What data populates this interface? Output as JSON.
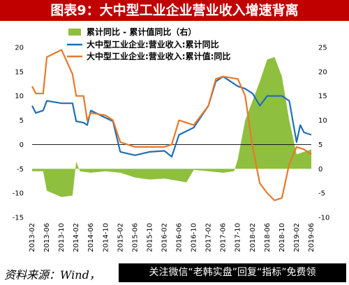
{
  "title": "图表9：大中型工业企业营业收入增速背离",
  "source": "资料来源：Wind，",
  "promo": "关注微信“老韩实盘”回复“指标”免费领",
  "colors": {
    "bg_title": "#c00000",
    "area": "#8fbf3f",
    "blue": "#1f6eb5",
    "orange": "#e8782a"
  },
  "chart_data": {
    "type": "line",
    "x_tick_labels": [
      "2013-02",
      "2013-06",
      "2013-10",
      "2014-02",
      "2014-06",
      "2014-10",
      "2015-02",
      "2015-06",
      "2015-10",
      "2016-02",
      "2016-06",
      "2016-10",
      "2017-02",
      "2017-06",
      "2017-10",
      "2018-02",
      "2018-06",
      "2018-10",
      "2019-02",
      "2019-06"
    ],
    "x_start": "2013-02",
    "x_end": "2019-06",
    "left_axis": {
      "min": -15,
      "max": 20,
      "ticks": [
        -15,
        -10,
        -5,
        0,
        5,
        10,
        15,
        20
      ]
    },
    "right_axis": {
      "min": -10,
      "max": 25,
      "ticks": [
        -10,
        -5,
        0,
        5,
        10,
        15,
        20,
        25
      ]
    },
    "legend": [
      {
        "label": "累计同比 - 累计值同比（右）",
        "type": "area"
      },
      {
        "label": "大中型工业企业:营业收入:累计同比",
        "type": "line"
      },
      {
        "label": "大中型工业企业:营业收入:累计值:同比",
        "type": "line"
      }
    ],
    "series": [
      {
        "name": "累计同比 - 累计值同比（右）",
        "axis": "right",
        "kind": "area",
        "points": [
          [
            "2013-02",
            -0.5
          ],
          [
            "2013-05",
            -0.5
          ],
          [
            "2013-06",
            -4.5
          ],
          [
            "2013-10",
            -5.8
          ],
          [
            "2014-01",
            -5.5
          ],
          [
            "2014-02",
            1.5
          ],
          [
            "2014-03",
            -0.5
          ],
          [
            "2014-06",
            -0.8
          ],
          [
            "2014-10",
            -0.5
          ],
          [
            "2015-02",
            -0.8
          ],
          [
            "2015-06",
            -1.8
          ],
          [
            "2015-10",
            -2.2
          ],
          [
            "2016-02",
            -2.0
          ],
          [
            "2016-06",
            -2.5
          ],
          [
            "2016-08",
            -2.8
          ],
          [
            "2016-10",
            -0.2
          ],
          [
            "2017-02",
            -0.5
          ],
          [
            "2017-06",
            -0.8
          ],
          [
            "2017-09",
            -0.5
          ],
          [
            "2017-10",
            2.0
          ],
          [
            "2017-12",
            10.0
          ],
          [
            "2018-02",
            14.0
          ],
          [
            "2018-04",
            18.0
          ],
          [
            "2018-06",
            22.5
          ],
          [
            "2018-08",
            23.0
          ],
          [
            "2018-10",
            19.0
          ],
          [
            "2018-12",
            10.0
          ],
          [
            "2019-02",
            3.0
          ],
          [
            "2019-04",
            3.5
          ],
          [
            "2019-06",
            4.0
          ]
        ]
      },
      {
        "name": "大中型工业企业:营业收入:累计同比",
        "axis": "left",
        "kind": "line",
        "points": [
          [
            "2013-02",
            8
          ],
          [
            "2013-03",
            6.5
          ],
          [
            "2013-05",
            7
          ],
          [
            "2013-06",
            9
          ],
          [
            "2013-10",
            8.5
          ],
          [
            "2014-01",
            8.5
          ],
          [
            "2014-02",
            4.8
          ],
          [
            "2014-04",
            4.5
          ],
          [
            "2014-05",
            4
          ],
          [
            "2014-06",
            7
          ],
          [
            "2014-10",
            5.5
          ],
          [
            "2014-12",
            4.8
          ],
          [
            "2015-02",
            -1.5
          ],
          [
            "2015-06",
            -2.2
          ],
          [
            "2015-10",
            -1.5
          ],
          [
            "2016-02",
            -1.3
          ],
          [
            "2016-04",
            -2.5
          ],
          [
            "2016-06",
            2
          ],
          [
            "2016-10",
            3.5
          ],
          [
            "2017-02",
            8
          ],
          [
            "2017-04",
            13
          ],
          [
            "2017-06",
            14
          ],
          [
            "2017-10",
            12
          ],
          [
            "2017-12",
            11.5
          ],
          [
            "2018-02",
            10.5
          ],
          [
            "2018-04",
            8
          ],
          [
            "2018-06",
            10
          ],
          [
            "2018-10",
            10
          ],
          [
            "2018-12",
            9
          ],
          [
            "2019-02",
            0.5
          ],
          [
            "2019-03",
            4
          ],
          [
            "2019-04",
            2.5
          ],
          [
            "2019-06",
            2
          ]
        ]
      },
      {
        "name": "大中型工业企业:营业收入:累计值:同比",
        "axis": "left",
        "kind": "line",
        "points": [
          [
            "2013-02",
            12
          ],
          [
            "2013-03",
            10.5
          ],
          [
            "2013-05",
            10.5
          ],
          [
            "2013-06",
            18
          ],
          [
            "2013-10",
            19.5
          ],
          [
            "2014-01",
            14.5
          ],
          [
            "2014-02",
            10
          ],
          [
            "2014-04",
            10
          ],
          [
            "2014-05",
            5
          ],
          [
            "2014-06",
            6.5
          ],
          [
            "2014-10",
            6
          ],
          [
            "2014-12",
            5
          ],
          [
            "2015-02",
            0.5
          ],
          [
            "2015-06",
            -0.5
          ],
          [
            "2015-10",
            -0.5
          ],
          [
            "2016-02",
            -0.5
          ],
          [
            "2016-04",
            0
          ],
          [
            "2016-06",
            5
          ],
          [
            "2016-08",
            4.5
          ],
          [
            "2016-10",
            4
          ],
          [
            "2017-02",
            8
          ],
          [
            "2017-04",
            13.5
          ],
          [
            "2017-06",
            14
          ],
          [
            "2017-10",
            13.5
          ],
          [
            "2017-12",
            10
          ],
          [
            "2018-02",
            -0.5
          ],
          [
            "2018-04",
            -8
          ],
          [
            "2018-06",
            -10
          ],
          [
            "2018-08",
            -11.5
          ],
          [
            "2018-10",
            -11
          ],
          [
            "2018-12",
            -4
          ],
          [
            "2019-02",
            -0.5
          ],
          [
            "2019-04",
            -1
          ],
          [
            "2019-06",
            -2
          ]
        ]
      }
    ]
  }
}
